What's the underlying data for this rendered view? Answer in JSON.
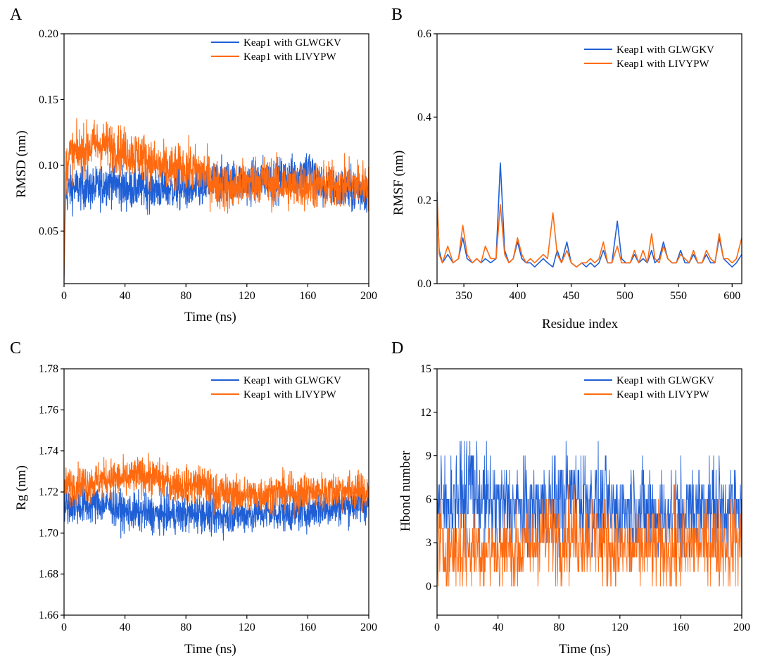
{
  "colors": {
    "series1": "#1f5fd6",
    "series2": "#ff6a10"
  },
  "chart_data": [
    {
      "panel": "A",
      "type": "line",
      "xlabel": "Time (ns)",
      "ylabel": "RMSD (nm)",
      "xlim": [
        0,
        200
      ],
      "ylim": [
        0.01,
        0.2
      ],
      "xticks": [
        0,
        40,
        80,
        120,
        160,
        200
      ],
      "yticks": [
        0.05,
        0.1,
        0.15,
        0.2
      ],
      "ytick_labels": [
        "0.05",
        "0.10",
        "0.15",
        "0.20"
      ],
      "legend": "top-right",
      "series": [
        {
          "name": "Keap1 with GLWGKV",
          "x": [
            0,
            1,
            3,
            10,
            20,
            30,
            40,
            50,
            60,
            70,
            80,
            90,
            100,
            110,
            120,
            130,
            140,
            150,
            155,
            160,
            165,
            170,
            180,
            190,
            200
          ],
          "y": [
            0.012,
            0.075,
            0.082,
            0.083,
            0.082,
            0.088,
            0.082,
            0.083,
            0.082,
            0.082,
            0.082,
            0.082,
            0.088,
            0.088,
            0.086,
            0.09,
            0.089,
            0.091,
            0.094,
            0.098,
            0.09,
            0.084,
            0.082,
            0.08,
            0.08
          ],
          "noise": 0.008
        },
        {
          "name": "Keap1 with LIVYPW",
          "x": [
            0,
            1,
            3,
            10,
            20,
            30,
            40,
            50,
            60,
            70,
            80,
            90,
            100,
            110,
            120,
            130,
            140,
            150,
            160,
            170,
            180,
            190,
            200
          ],
          "y": [
            0.012,
            0.095,
            0.107,
            0.11,
            0.116,
            0.115,
            0.11,
            0.108,
            0.1,
            0.096,
            0.098,
            0.095,
            0.085,
            0.082,
            0.087,
            0.09,
            0.085,
            0.084,
            0.085,
            0.084,
            0.085,
            0.086,
            0.085
          ],
          "noise": 0.009
        }
      ]
    },
    {
      "panel": "B",
      "type": "line",
      "xlabel": "Residue index",
      "ylabel": "RMSF (nm)",
      "xlim": [
        325,
        609
      ],
      "ylim": [
        0,
        0.6
      ],
      "xticks": [
        350,
        400,
        450,
        500,
        550,
        600
      ],
      "yticks": [
        0.0,
        0.2,
        0.4,
        0.6
      ],
      "ytick_labels": [
        "0.0",
        "0.2",
        "0.4",
        "0.6"
      ],
      "legend": "top-right",
      "series": [
        {
          "name": "Keap1 with GLWGKV",
          "x": [
            325,
            327,
            330,
            335,
            340,
            345,
            349,
            353,
            358,
            362,
            366,
            370,
            375,
            380,
            384,
            388,
            392,
            396,
            400,
            404,
            408,
            412,
            416,
            420,
            424,
            428,
            433,
            437,
            441,
            446,
            450,
            455,
            460,
            464,
            468,
            472,
            476,
            480,
            484,
            488,
            493,
            497,
            501,
            505,
            509,
            513,
            517,
            521,
            525,
            528,
            532,
            536,
            540,
            544,
            548,
            552,
            556,
            560,
            564,
            568,
            572,
            576,
            580,
            584,
            588,
            592,
            596,
            600,
            604,
            609
          ],
          "y": [
            0.2,
            0.08,
            0.05,
            0.07,
            0.05,
            0.06,
            0.11,
            0.06,
            0.05,
            0.06,
            0.05,
            0.06,
            0.05,
            0.06,
            0.29,
            0.08,
            0.05,
            0.06,
            0.1,
            0.06,
            0.05,
            0.05,
            0.04,
            0.05,
            0.06,
            0.05,
            0.04,
            0.08,
            0.05,
            0.1,
            0.05,
            0.04,
            0.05,
            0.04,
            0.05,
            0.04,
            0.05,
            0.08,
            0.05,
            0.05,
            0.15,
            0.06,
            0.05,
            0.05,
            0.07,
            0.05,
            0.06,
            0.05,
            0.08,
            0.05,
            0.06,
            0.1,
            0.06,
            0.05,
            0.05,
            0.08,
            0.05,
            0.05,
            0.07,
            0.05,
            0.05,
            0.07,
            0.05,
            0.05,
            0.11,
            0.06,
            0.05,
            0.04,
            0.05,
            0.07
          ]
        },
        {
          "name": "Keap1 with LIVYPW",
          "x": [
            325,
            327,
            330,
            335,
            340,
            345,
            349,
            353,
            358,
            362,
            366,
            370,
            375,
            380,
            384,
            388,
            392,
            396,
            400,
            404,
            408,
            412,
            416,
            420,
            424,
            428,
            433,
            437,
            441,
            446,
            450,
            455,
            460,
            464,
            468,
            472,
            476,
            480,
            484,
            488,
            493,
            497,
            501,
            505,
            509,
            513,
            517,
            521,
            525,
            528,
            532,
            536,
            540,
            544,
            548,
            552,
            556,
            560,
            564,
            568,
            572,
            576,
            580,
            584,
            588,
            592,
            596,
            600,
            604,
            609
          ],
          "y": [
            0.22,
            0.07,
            0.05,
            0.09,
            0.05,
            0.06,
            0.14,
            0.07,
            0.05,
            0.06,
            0.05,
            0.09,
            0.06,
            0.06,
            0.19,
            0.07,
            0.05,
            0.06,
            0.11,
            0.07,
            0.05,
            0.06,
            0.05,
            0.06,
            0.07,
            0.06,
            0.17,
            0.07,
            0.05,
            0.08,
            0.05,
            0.04,
            0.05,
            0.05,
            0.06,
            0.05,
            0.06,
            0.1,
            0.05,
            0.05,
            0.09,
            0.05,
            0.05,
            0.05,
            0.08,
            0.05,
            0.08,
            0.05,
            0.12,
            0.06,
            0.05,
            0.09,
            0.06,
            0.05,
            0.05,
            0.07,
            0.06,
            0.05,
            0.08,
            0.05,
            0.05,
            0.08,
            0.06,
            0.05,
            0.12,
            0.06,
            0.06,
            0.05,
            0.06,
            0.11
          ]
        }
      ]
    },
    {
      "panel": "C",
      "type": "line",
      "xlabel": "Time (ns)",
      "ylabel": "Rg (nm)",
      "xlim": [
        0,
        200
      ],
      "ylim": [
        1.66,
        1.78
      ],
      "xticks": [
        0,
        40,
        80,
        120,
        160,
        200
      ],
      "yticks": [
        1.66,
        1.68,
        1.7,
        1.72,
        1.74,
        1.76,
        1.78
      ],
      "ytick_labels": [
        "1.66",
        "1.68",
        "1.70",
        "1.72",
        "1.74",
        "1.76",
        "1.78"
      ],
      "legend": "top-right",
      "series": [
        {
          "name": "Keap1 with GLWGKV",
          "x": [
            0,
            10,
            20,
            30,
            40,
            50,
            60,
            70,
            80,
            90,
            100,
            110,
            120,
            130,
            140,
            150,
            160,
            170,
            180,
            190,
            200
          ],
          "y": [
            1.714,
            1.713,
            1.714,
            1.714,
            1.71,
            1.71,
            1.709,
            1.709,
            1.709,
            1.71,
            1.708,
            1.709,
            1.709,
            1.71,
            1.71,
            1.71,
            1.711,
            1.712,
            1.713,
            1.714,
            1.714
          ],
          "noise": 0.0045
        },
        {
          "name": "Keap1 with LIVYPW",
          "x": [
            0,
            10,
            20,
            30,
            40,
            50,
            60,
            70,
            80,
            90,
            100,
            110,
            120,
            130,
            140,
            150,
            160,
            170,
            180,
            190,
            200
          ],
          "y": [
            1.722,
            1.724,
            1.725,
            1.727,
            1.726,
            1.728,
            1.727,
            1.724,
            1.723,
            1.724,
            1.72,
            1.719,
            1.718,
            1.719,
            1.72,
            1.719,
            1.72,
            1.72,
            1.721,
            1.721,
            1.72
          ],
          "noise": 0.0045
        }
      ]
    },
    {
      "panel": "D",
      "type": "line",
      "xlabel": "Time (ns)",
      "ylabel": "Hbond number",
      "xlim": [
        0,
        200
      ],
      "ylim": [
        -2,
        15
      ],
      "xticks": [
        0,
        40,
        80,
        120,
        160,
        200
      ],
      "yticks": [
        0,
        3,
        6,
        9,
        12,
        15
      ],
      "ytick_labels": [
        "0",
        "3",
        "6",
        "9",
        "12",
        "15"
      ],
      "legend": "top-right",
      "series": [
        {
          "name": "Keap1 with GLWGKV",
          "x": [
            0,
            10,
            20,
            22,
            25,
            30,
            40,
            50,
            60,
            70,
            80,
            90,
            100,
            110,
            120,
            130,
            140,
            150,
            160,
            170,
            180,
            190,
            200
          ],
          "y": [
            5.5,
            6,
            6.5,
            8,
            6.5,
            6,
            5.5,
            5.5,
            5,
            5.5,
            6,
            6.5,
            6,
            5.5,
            5,
            5.5,
            5,
            5,
            5,
            5.5,
            5.5,
            5.5,
            5
          ],
          "noise": 1.6
        },
        {
          "name": "Keap1 with LIVYPW",
          "x": [
            0,
            20,
            40,
            60,
            70,
            80,
            100,
            120,
            140,
            160,
            170,
            180,
            200
          ],
          "y": [
            2.5,
            2.5,
            2.5,
            2.5,
            3.5,
            3.5,
            3.5,
            2.5,
            2.5,
            2.5,
            3,
            3,
            3
          ],
          "noise": 1.5
        }
      ]
    }
  ]
}
